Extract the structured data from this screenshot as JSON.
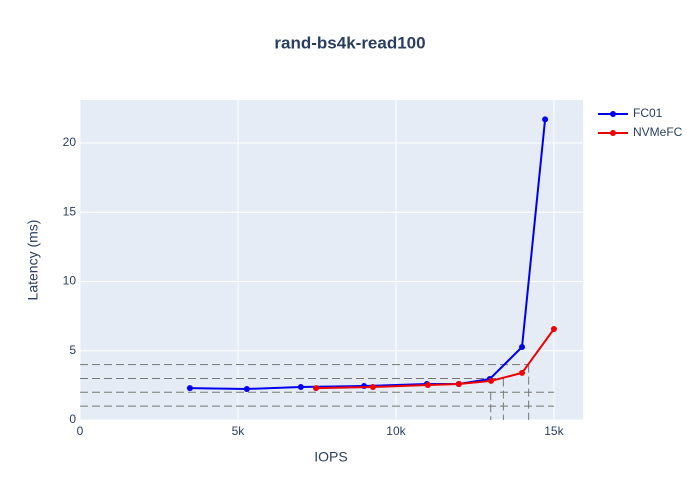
{
  "chart_data": {
    "type": "line",
    "title": "rand-bs4k-read100",
    "x_label": "IOPS",
    "y_label": "Latency (ms)",
    "series": [
      {
        "name": "FC01",
        "color": "#0000ee",
        "x": [
          3480,
          5280,
          6990,
          8990,
          10980,
          11990,
          12970,
          13990,
          14720
        ],
        "values": [
          2.3,
          2.24,
          2.38,
          2.45,
          2.6,
          2.6,
          2.96,
          5.27,
          21.7
        ]
      },
      {
        "name": "NVMeFC",
        "color": "#ee0000",
        "x": [
          7470,
          9270,
          11010,
          11990,
          13010,
          13990,
          15000
        ],
        "values": [
          2.3,
          2.38,
          2.53,
          2.6,
          2.82,
          3.4,
          6.57
        ]
      }
    ],
    "hlines": [
      {
        "y": 4,
        "xmax": 14200
      },
      {
        "y": 3,
        "xmax": 13400
      },
      {
        "y": 2,
        "xmax": 15000
      },
      {
        "y": 1,
        "xmax": 15000
      }
    ],
    "vlines": [
      {
        "x": 13000,
        "ymax": 2
      },
      {
        "x": 13400,
        "ymax": 3
      },
      {
        "x": 14200,
        "ymax": 4
      }
    ],
    "xlim": [
      0,
      15920
    ],
    "ylim": [
      0,
      23.1
    ],
    "xticks": [
      0,
      {
        "value": 5000,
        "label": "5k"
      },
      {
        "value": 10000,
        "label": "10k"
      },
      {
        "value": 15000,
        "label": "15k"
      }
    ],
    "yticks": [
      0,
      5,
      10,
      15,
      20
    ],
    "grid": true,
    "legend": "right"
  }
}
